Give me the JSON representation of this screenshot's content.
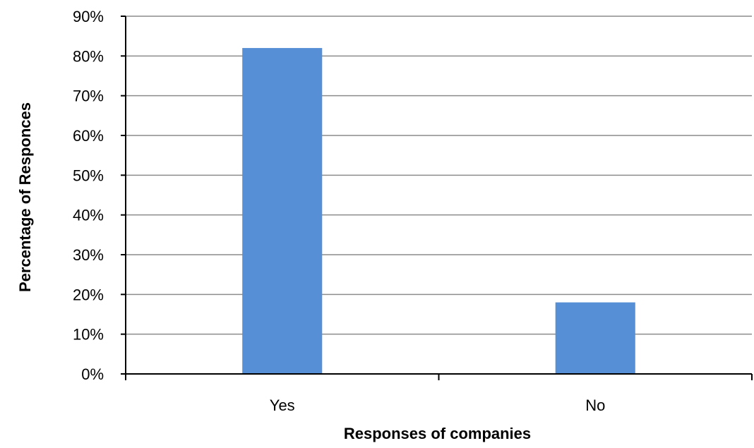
{
  "chart_data": {
    "type": "bar",
    "categories": [
      "Yes",
      "No"
    ],
    "values": [
      82,
      18
    ],
    "value_unit": "%",
    "xlabel": "Responses of companies",
    "ylabel": "Percentage  of Responces",
    "ylim": [
      0,
      90
    ],
    "ytick_step": 10,
    "yticks": [
      "0%",
      "10%",
      "20%",
      "30%",
      "40%",
      "50%",
      "60%",
      "70%",
      "80%",
      "90%"
    ],
    "grid": "horizontal",
    "legend": "none",
    "bar_color": "#568FD6",
    "grid_color": "#8C8C8C",
    "axis_color": "#000000"
  }
}
